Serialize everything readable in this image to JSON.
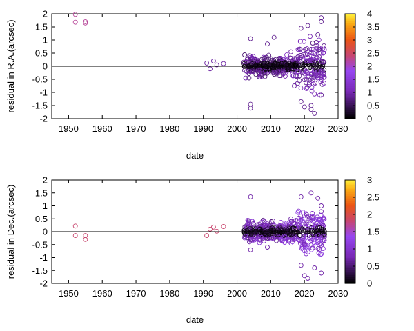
{
  "chart_data": [
    {
      "type": "scatter",
      "xlabel": "date",
      "ylabel": "residual in R.A.(arcsec)",
      "xlim": [
        1945,
        2030
      ],
      "ylim": [
        -2,
        2
      ],
      "x_ticks": [
        "1950",
        "1960",
        "1970",
        "1980",
        "1990",
        "2000",
        "2010",
        "2020",
        "2030"
      ],
      "y_ticks": [
        "-2",
        "-1.5",
        "-1",
        "-0.5",
        "0",
        "0.5",
        "1",
        "1.5",
        "2"
      ],
      "colorbar": {
        "min": 0,
        "max": 4,
        "ticks": [
          "0",
          "0.5",
          "1",
          "1.5",
          "2",
          "2.5",
          "3",
          "3.5",
          "4"
        ]
      },
      "reference_line": 0,
      "points": [
        [
          1952,
          1.98,
          2.2
        ],
        [
          1952,
          1.68,
          2.2
        ],
        [
          1955,
          1.7,
          2.2
        ],
        [
          1955,
          1.65,
          2.2
        ],
        [
          1991,
          0.12,
          0.9
        ],
        [
          1992,
          -0.1,
          0.9
        ],
        [
          1993,
          0.2,
          0.9
        ],
        [
          1994,
          0.05,
          0.9
        ],
        [
          1996,
          0.1,
          0.9
        ],
        [
          2004,
          1.05,
          0.8
        ],
        [
          2004,
          -1.45,
          0.8
        ],
        [
          2004,
          -1.6,
          0.8
        ],
        [
          2009,
          0.85,
          0.8
        ],
        [
          2011,
          1.1,
          0.8
        ],
        [
          2016,
          0.55,
          0.9
        ],
        [
          2017,
          -0.75,
          0.9
        ],
        [
          2018,
          -0.65,
          0.9
        ],
        [
          2019,
          1.45,
          0.8
        ],
        [
          2019,
          -1.35,
          0.8
        ],
        [
          2020,
          -1.55,
          0.8
        ],
        [
          2021,
          1.55,
          0.8
        ],
        [
          2022,
          -1.5,
          0.8
        ],
        [
          2022,
          -1.65,
          0.8
        ],
        [
          2023,
          -1.8,
          0.8
        ],
        [
          2024,
          1.2,
          0.8
        ],
        [
          2025,
          1.85,
          0.8
        ],
        [
          2025,
          1.7,
          0.8
        ],
        [
          2025,
          -1.1,
          0.8
        ],
        [
          2016,
          0.0,
          2.3
        ],
        [
          2017,
          -0.05,
          2.3
        ],
        [
          2018,
          0.05,
          1.9
        ],
        [
          2010,
          -0.1,
          0.2
        ],
        [
          2013,
          0.05,
          0.2
        ],
        [
          2020,
          0.05,
          0.2
        ]
      ]
    },
    {
      "type": "scatter",
      "xlabel": "date",
      "ylabel": "residual in Dec.(arcsec)",
      "xlim": [
        1945,
        2030
      ],
      "ylim": [
        -2,
        2
      ],
      "x_ticks": [
        "1950",
        "1960",
        "1970",
        "1980",
        "1990",
        "2000",
        "2010",
        "2020",
        "2030"
      ],
      "y_ticks": [
        "-2",
        "-1.5",
        "-1",
        "-0.5",
        "0",
        "0.5",
        "1",
        "1.5",
        "2"
      ],
      "colorbar": {
        "min": 0,
        "max": 3,
        "ticks": [
          "0",
          "0.5",
          "1",
          "1.5",
          "2",
          "2.5",
          "3"
        ]
      },
      "reference_line": 0,
      "points": [
        [
          1952,
          0.22,
          1.8
        ],
        [
          1952,
          -0.15,
          1.8
        ],
        [
          1955,
          -0.15,
          1.8
        ],
        [
          1955,
          -0.3,
          1.8
        ],
        [
          1991,
          -0.15,
          1.8
        ],
        [
          1992,
          0.1,
          1.8
        ],
        [
          1993,
          0.18,
          1.8
        ],
        [
          1994,
          0.02,
          1.8
        ],
        [
          1996,
          0.2,
          1.8
        ],
        [
          2004,
          1.35,
          0.7
        ],
        [
          2004,
          -0.7,
          0.7
        ],
        [
          2009,
          -0.6,
          0.7
        ],
        [
          2016,
          0.5,
          0.7
        ],
        [
          2019,
          1.35,
          0.7
        ],
        [
          2019,
          -1.3,
          0.7
        ],
        [
          2020,
          -1.7,
          0.7
        ],
        [
          2021,
          -1.8,
          0.7
        ],
        [
          2022,
          1.5,
          0.7
        ],
        [
          2023,
          -1.4,
          0.7
        ],
        [
          2024,
          1.3,
          0.7
        ],
        [
          2025,
          -1.6,
          0.7
        ],
        [
          2025,
          1.0,
          0.7
        ],
        [
          2016,
          0.0,
          1.7
        ],
        [
          2017,
          -0.05,
          1.7
        ],
        [
          2018,
          0.05,
          1.6
        ],
        [
          2009,
          0.0,
          0.2
        ],
        [
          2013,
          -0.05,
          0.2
        ],
        [
          2021,
          0.0,
          0.2
        ]
      ]
    }
  ]
}
